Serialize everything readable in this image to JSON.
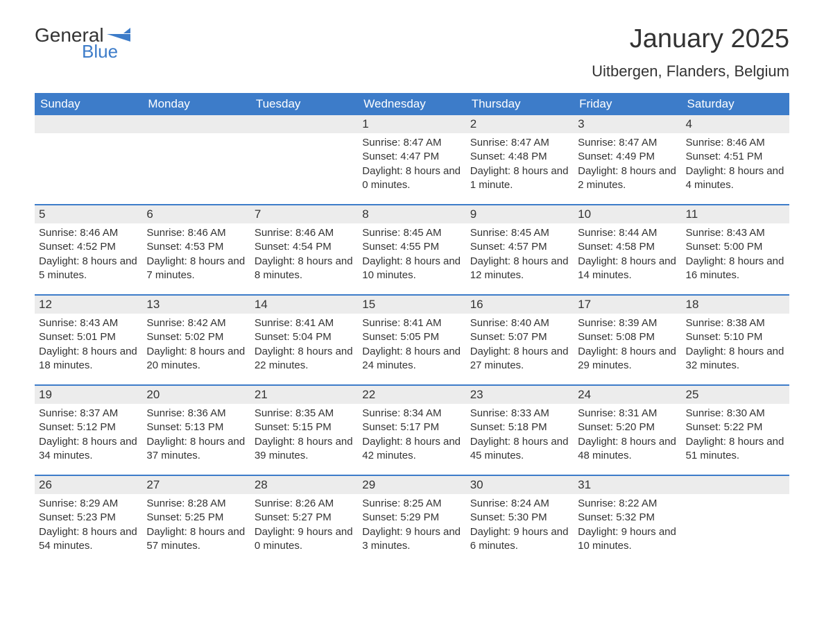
{
  "logo": {
    "text1": "General",
    "text2": "Blue",
    "flag_color": "#3d7cc9"
  },
  "header": {
    "month_title": "January 2025",
    "location": "Uitbergen, Flanders, Belgium"
  },
  "colors": {
    "header_bg": "#3d7cc9",
    "header_text": "#ffffff",
    "daynum_bg": "#ececec",
    "text": "#333333",
    "border": "#3d7cc9",
    "page_bg": "#ffffff"
  },
  "day_names": [
    "Sunday",
    "Monday",
    "Tuesday",
    "Wednesday",
    "Thursday",
    "Friday",
    "Saturday"
  ],
  "weeks": [
    [
      {
        "day": "",
        "sunrise": "",
        "sunset": "",
        "daylight": ""
      },
      {
        "day": "",
        "sunrise": "",
        "sunset": "",
        "daylight": ""
      },
      {
        "day": "",
        "sunrise": "",
        "sunset": "",
        "daylight": ""
      },
      {
        "day": "1",
        "sunrise": "Sunrise: 8:47 AM",
        "sunset": "Sunset: 4:47 PM",
        "daylight": "Daylight: 8 hours and 0 minutes."
      },
      {
        "day": "2",
        "sunrise": "Sunrise: 8:47 AM",
        "sunset": "Sunset: 4:48 PM",
        "daylight": "Daylight: 8 hours and 1 minute."
      },
      {
        "day": "3",
        "sunrise": "Sunrise: 8:47 AM",
        "sunset": "Sunset: 4:49 PM",
        "daylight": "Daylight: 8 hours and 2 minutes."
      },
      {
        "day": "4",
        "sunrise": "Sunrise: 8:46 AM",
        "sunset": "Sunset: 4:51 PM",
        "daylight": "Daylight: 8 hours and 4 minutes."
      }
    ],
    [
      {
        "day": "5",
        "sunrise": "Sunrise: 8:46 AM",
        "sunset": "Sunset: 4:52 PM",
        "daylight": "Daylight: 8 hours and 5 minutes."
      },
      {
        "day": "6",
        "sunrise": "Sunrise: 8:46 AM",
        "sunset": "Sunset: 4:53 PM",
        "daylight": "Daylight: 8 hours and 7 minutes."
      },
      {
        "day": "7",
        "sunrise": "Sunrise: 8:46 AM",
        "sunset": "Sunset: 4:54 PM",
        "daylight": "Daylight: 8 hours and 8 minutes."
      },
      {
        "day": "8",
        "sunrise": "Sunrise: 8:45 AM",
        "sunset": "Sunset: 4:55 PM",
        "daylight": "Daylight: 8 hours and 10 minutes."
      },
      {
        "day": "9",
        "sunrise": "Sunrise: 8:45 AM",
        "sunset": "Sunset: 4:57 PM",
        "daylight": "Daylight: 8 hours and 12 minutes."
      },
      {
        "day": "10",
        "sunrise": "Sunrise: 8:44 AM",
        "sunset": "Sunset: 4:58 PM",
        "daylight": "Daylight: 8 hours and 14 minutes."
      },
      {
        "day": "11",
        "sunrise": "Sunrise: 8:43 AM",
        "sunset": "Sunset: 5:00 PM",
        "daylight": "Daylight: 8 hours and 16 minutes."
      }
    ],
    [
      {
        "day": "12",
        "sunrise": "Sunrise: 8:43 AM",
        "sunset": "Sunset: 5:01 PM",
        "daylight": "Daylight: 8 hours and 18 minutes."
      },
      {
        "day": "13",
        "sunrise": "Sunrise: 8:42 AM",
        "sunset": "Sunset: 5:02 PM",
        "daylight": "Daylight: 8 hours and 20 minutes."
      },
      {
        "day": "14",
        "sunrise": "Sunrise: 8:41 AM",
        "sunset": "Sunset: 5:04 PM",
        "daylight": "Daylight: 8 hours and 22 minutes."
      },
      {
        "day": "15",
        "sunrise": "Sunrise: 8:41 AM",
        "sunset": "Sunset: 5:05 PM",
        "daylight": "Daylight: 8 hours and 24 minutes."
      },
      {
        "day": "16",
        "sunrise": "Sunrise: 8:40 AM",
        "sunset": "Sunset: 5:07 PM",
        "daylight": "Daylight: 8 hours and 27 minutes."
      },
      {
        "day": "17",
        "sunrise": "Sunrise: 8:39 AM",
        "sunset": "Sunset: 5:08 PM",
        "daylight": "Daylight: 8 hours and 29 minutes."
      },
      {
        "day": "18",
        "sunrise": "Sunrise: 8:38 AM",
        "sunset": "Sunset: 5:10 PM",
        "daylight": "Daylight: 8 hours and 32 minutes."
      }
    ],
    [
      {
        "day": "19",
        "sunrise": "Sunrise: 8:37 AM",
        "sunset": "Sunset: 5:12 PM",
        "daylight": "Daylight: 8 hours and 34 minutes."
      },
      {
        "day": "20",
        "sunrise": "Sunrise: 8:36 AM",
        "sunset": "Sunset: 5:13 PM",
        "daylight": "Daylight: 8 hours and 37 minutes."
      },
      {
        "day": "21",
        "sunrise": "Sunrise: 8:35 AM",
        "sunset": "Sunset: 5:15 PM",
        "daylight": "Daylight: 8 hours and 39 minutes."
      },
      {
        "day": "22",
        "sunrise": "Sunrise: 8:34 AM",
        "sunset": "Sunset: 5:17 PM",
        "daylight": "Daylight: 8 hours and 42 minutes."
      },
      {
        "day": "23",
        "sunrise": "Sunrise: 8:33 AM",
        "sunset": "Sunset: 5:18 PM",
        "daylight": "Daylight: 8 hours and 45 minutes."
      },
      {
        "day": "24",
        "sunrise": "Sunrise: 8:31 AM",
        "sunset": "Sunset: 5:20 PM",
        "daylight": "Daylight: 8 hours and 48 minutes."
      },
      {
        "day": "25",
        "sunrise": "Sunrise: 8:30 AM",
        "sunset": "Sunset: 5:22 PM",
        "daylight": "Daylight: 8 hours and 51 minutes."
      }
    ],
    [
      {
        "day": "26",
        "sunrise": "Sunrise: 8:29 AM",
        "sunset": "Sunset: 5:23 PM",
        "daylight": "Daylight: 8 hours and 54 minutes."
      },
      {
        "day": "27",
        "sunrise": "Sunrise: 8:28 AM",
        "sunset": "Sunset: 5:25 PM",
        "daylight": "Daylight: 8 hours and 57 minutes."
      },
      {
        "day": "28",
        "sunrise": "Sunrise: 8:26 AM",
        "sunset": "Sunset: 5:27 PM",
        "daylight": "Daylight: 9 hours and 0 minutes."
      },
      {
        "day": "29",
        "sunrise": "Sunrise: 8:25 AM",
        "sunset": "Sunset: 5:29 PM",
        "daylight": "Daylight: 9 hours and 3 minutes."
      },
      {
        "day": "30",
        "sunrise": "Sunrise: 8:24 AM",
        "sunset": "Sunset: 5:30 PM",
        "daylight": "Daylight: 9 hours and 6 minutes."
      },
      {
        "day": "31",
        "sunrise": "Sunrise: 8:22 AM",
        "sunset": "Sunset: 5:32 PM",
        "daylight": "Daylight: 9 hours and 10 minutes."
      },
      {
        "day": "",
        "sunrise": "",
        "sunset": "",
        "daylight": ""
      }
    ]
  ]
}
